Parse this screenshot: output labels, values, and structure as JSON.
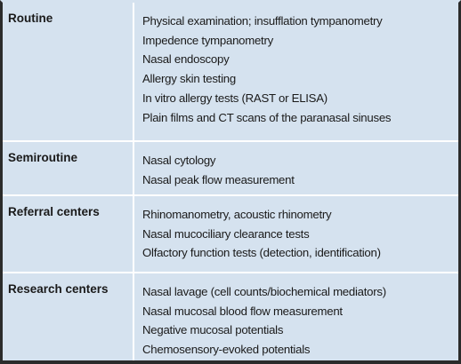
{
  "table": {
    "rows": [
      [
        "Routine",
        [
          "Physical examination; insufflation tympanometry",
          "Impedence tympanometry",
          "Nasal endoscopy",
          "Allergy skin testing",
          "In vitro allergy tests (RAST or ELISA)",
          "Plain films and CT scans of the paranasal sinuses"
        ]
      ],
      [
        "Semiroutine",
        [
          "Nasal cytology",
          "Nasal peak flow measurement"
        ]
      ],
      [
        "Referral centers",
        [
          "Rhinomanometry, acoustic rhinometry",
          "Nasal mucociliary clearance tests",
          "Olfactory function tests (detection, identification)"
        ]
      ],
      [
        "Research centers",
        [
          "Nasal lavage (cell counts/biochemical mediators)",
          "Nasal mucosal blood flow measurement",
          "Negative mucosal potentials",
          "Chemosensory-evoked potentials"
        ]
      ]
    ]
  }
}
